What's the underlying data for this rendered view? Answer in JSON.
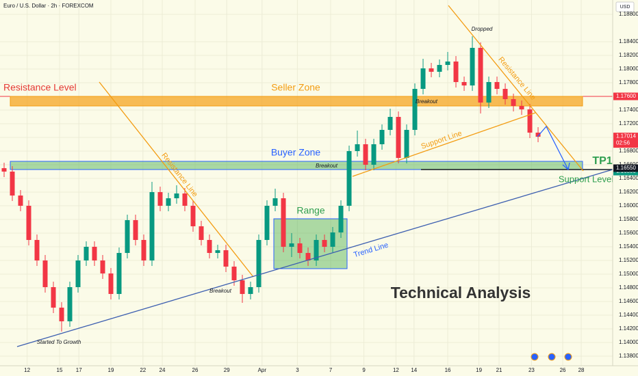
{
  "chart_data": {
    "type": "candlestick",
    "title": "Euro / U.S. Dollar · 2h · FOREXCOM",
    "currency": "USD",
    "up_color": "#089981",
    "down_color": "#f23645",
    "ylim": [
      1.1366,
      1.1901
    ],
    "yticks": [
      {
        "value": 1.188,
        "label": "1.18800"
      },
      {
        "value": 1.184,
        "label": "1.18400"
      },
      {
        "value": 1.182,
        "label": "1.18200"
      },
      {
        "value": 1.18,
        "label": "1.18000"
      },
      {
        "value": 1.178,
        "label": "1.17800"
      },
      {
        "value": 1.176,
        "label": "1.17600"
      },
      {
        "value": 1.174,
        "label": "1.17400"
      },
      {
        "value": 1.172,
        "label": "1.17200"
      },
      {
        "value": 1.17,
        "label": "1.17000"
      },
      {
        "value": 1.168,
        "label": "1.16800"
      },
      {
        "value": 1.166,
        "label": "1.16600"
      },
      {
        "value": 1.164,
        "label": "1.16400"
      },
      {
        "value": 1.162,
        "label": "1.16200"
      },
      {
        "value": 1.16,
        "label": "1.16000"
      },
      {
        "value": 1.158,
        "label": "1.15800"
      },
      {
        "value": 1.156,
        "label": "1.15600"
      },
      {
        "value": 1.154,
        "label": "1.15400"
      },
      {
        "value": 1.152,
        "label": "1.15200"
      },
      {
        "value": 1.15,
        "label": "1.15000"
      },
      {
        "value": 1.148,
        "label": "1.14800"
      },
      {
        "value": 1.146,
        "label": "1.14600"
      },
      {
        "value": 1.144,
        "label": "1.14400"
      },
      {
        "value": 1.142,
        "label": "1.14200"
      },
      {
        "value": 1.14,
        "label": "1.14000"
      },
      {
        "value": 1.138,
        "label": "1.13800"
      }
    ],
    "xlim": [
      -0.5,
      74.08
    ],
    "xticks": [
      {
        "value": 2.8,
        "label": "12"
      },
      {
        "value": 6.75,
        "label": "15"
      },
      {
        "value": 9.1,
        "label": "17"
      },
      {
        "value": 13,
        "label": "19"
      },
      {
        "value": 16.9,
        "label": "22"
      },
      {
        "value": 19.25,
        "label": "24"
      },
      {
        "value": 23.25,
        "label": "26"
      },
      {
        "value": 27.1,
        "label": "29"
      },
      {
        "value": 31.4,
        "label": "Apr"
      },
      {
        "value": 35.7,
        "label": "3"
      },
      {
        "value": 39.75,
        "label": "7"
      },
      {
        "value": 43.8,
        "label": "9"
      },
      {
        "value": 47.7,
        "label": "12"
      },
      {
        "value": 49.9,
        "label": "14"
      },
      {
        "value": 54,
        "label": "16"
      },
      {
        "value": 57.8,
        "label": "19"
      },
      {
        "value": 60.25,
        "label": "21"
      },
      {
        "value": 64.2,
        "label": "23"
      },
      {
        "value": 68,
        "label": "26"
      },
      {
        "value": 70.25,
        "label": "28"
      }
    ],
    "open": [
      1.1655,
      1.165,
      1.1615,
      1.16,
      1.155,
      1.152,
      1.1481,
      1.1451,
      1.1431,
      1.1481,
      1.152,
      1.154,
      1.152,
      1.1501,
      1.1471,
      1.1531,
      1.1579,
      1.155,
      1.152,
      1.162,
      1.16,
      1.1611,
      1.1618,
      1.16,
      1.157,
      1.155,
      1.1531,
      1.1535,
      1.1511,
      1.1491,
      1.1471,
      1.1481,
      1.155,
      1.16,
      1.1611,
      1.154,
      1.1545,
      1.1531,
      1.152,
      1.155,
      1.154,
      1.1561,
      1.16,
      1.168,
      1.169,
      1.166,
      1.169,
      1.1711,
      1.173,
      1.167,
      1.1711,
      1.1771,
      1.1801,
      1.1796,
      1.1806,
      1.1811,
      1.1781,
      1.1776,
      1.1831,
      1.1751,
      1.1781,
      1.1771,
      1.1756,
      1.1746,
      1.1741,
      1.1707
    ],
    "high": [
      1.1663,
      1.1658,
      1.1623,
      1.1608,
      1.1558,
      1.1528,
      1.1489,
      1.1459,
      1.1489,
      1.1528,
      1.1548,
      1.1548,
      1.1528,
      1.1509,
      1.1539,
      1.1587,
      1.1587,
      1.1558,
      1.1635,
      1.1628,
      1.1619,
      1.163,
      1.1626,
      1.1608,
      1.1578,
      1.1558,
      1.1543,
      1.1543,
      1.1519,
      1.1499,
      1.1489,
      1.1558,
      1.1608,
      1.1625,
      1.1619,
      1.156,
      1.1553,
      1.1539,
      1.1558,
      1.1558,
      1.1569,
      1.1608,
      1.1688,
      1.171,
      1.1698,
      1.1698,
      1.1719,
      1.1742,
      1.1738,
      1.1719,
      1.1779,
      1.1815,
      1.1809,
      1.1814,
      1.1825,
      1.1819,
      1.1789,
      1.1848,
      1.1839,
      1.1789,
      1.1789,
      1.1779,
      1.1764,
      1.1754,
      1.1749,
      1.1715
    ],
    "low": [
      1.1642,
      1.1607,
      1.1592,
      1.1542,
      1.1512,
      1.1473,
      1.1443,
      1.1416,
      1.1423,
      1.1473,
      1.1512,
      1.1512,
      1.1493,
      1.1463,
      1.1463,
      1.1523,
      1.1542,
      1.1512,
      1.1512,
      1.1592,
      1.1592,
      1.1603,
      1.1592,
      1.1562,
      1.1542,
      1.1523,
      1.1523,
      1.1503,
      1.1483,
      1.1458,
      1.1463,
      1.1473,
      1.1542,
      1.1592,
      1.1532,
      1.1525,
      1.1523,
      1.1512,
      1.1512,
      1.1532,
      1.1532,
      1.1553,
      1.1592,
      1.1672,
      1.1652,
      1.1652,
      1.1682,
      1.1703,
      1.1662,
      1.1662,
      1.1703,
      1.1763,
      1.1788,
      1.1788,
      1.1798,
      1.1773,
      1.1768,
      1.1768,
      1.1735,
      1.1743,
      1.1763,
      1.1748,
      1.1738,
      1.1733,
      1.1699,
      1.1693
    ],
    "close": [
      1.165,
      1.1615,
      1.16,
      1.155,
      1.152,
      1.1481,
      1.1451,
      1.1431,
      1.1481,
      1.152,
      1.154,
      1.152,
      1.1501,
      1.1471,
      1.1531,
      1.1579,
      1.155,
      1.152,
      1.162,
      1.16,
      1.1611,
      1.1618,
      1.16,
      1.157,
      1.155,
      1.1531,
      1.1535,
      1.1511,
      1.1491,
      1.1471,
      1.1481,
      1.155,
      1.16,
      1.1611,
      1.154,
      1.1545,
      1.1531,
      1.152,
      1.155,
      1.154,
      1.1561,
      1.16,
      1.168,
      1.169,
      1.166,
      1.169,
      1.1711,
      1.173,
      1.167,
      1.1711,
      1.1771,
      1.1801,
      1.1796,
      1.1806,
      1.1811,
      1.1781,
      1.1776,
      1.1831,
      1.1751,
      1.1781,
      1.1771,
      1.1756,
      1.1746,
      1.1741,
      1.1707,
      1.1701
    ],
    "price_labels": [
      {
        "value": 1.176,
        "label": "1.17600",
        "color": "#f23645"
      },
      {
        "value": 1.17014,
        "label": "1.17014",
        "color": "#f23645",
        "countdown": "02:56"
      },
      {
        "value": 1.165,
        "label": "1.16500",
        "color": "#089981"
      },
      {
        "value": 1.1655,
        "label": "1.16550",
        "color": "#131722"
      }
    ],
    "annotations": {
      "resistance_level": "Resistance Level",
      "seller_zone": "Seller Zone",
      "buyer_zone": "Buyer Zone",
      "breakout_1": "Breakout",
      "breakout_2": "Breakout",
      "breakout_3": "Breakout",
      "resistance_line_1": "Resistance Line",
      "resistance_line_2": "Resistance Line",
      "support_line": "Support Line",
      "trend_line": "Trend Line",
      "range": "Range",
      "dropped": "Dropped",
      "started": "Started To Growth",
      "tp1": "TP1",
      "support_level": "Support Level",
      "headline": "Technical Analysis"
    }
  }
}
